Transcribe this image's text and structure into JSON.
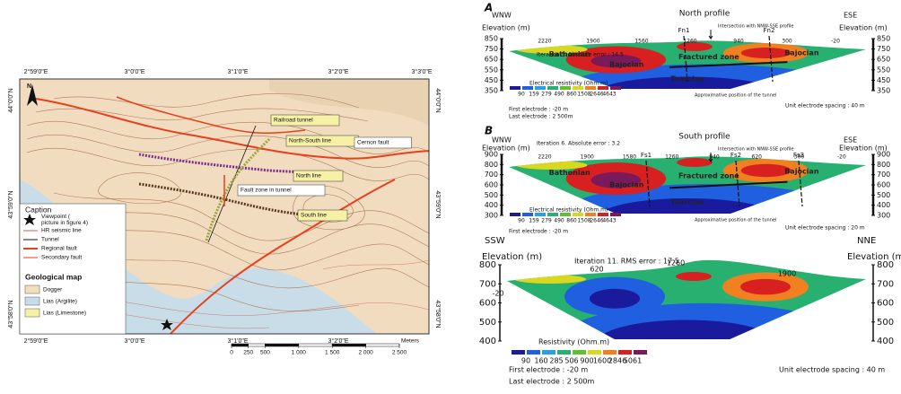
{
  "map": {
    "top_lon_labels": [
      "2°59'0\"E",
      "3°0'0\"E",
      "3°1'0\"E",
      "3°2'0\"E",
      "3°3'0\"E"
    ],
    "bottom_lon_labels": [
      "2°59'0\"E",
      "3°0'0\"E",
      "3°1'0\"E",
      "3°2'0\"E"
    ],
    "left_lat_labels": [
      "44°0'0\"N",
      "43°59'0\"N",
      "43°58'0\"N"
    ],
    "right_lat_labels": [
      "44°0'0\"N",
      "43°59'0\"N",
      "43°58'0\"N"
    ],
    "north": "N",
    "features": [
      "Railroad tunnel",
      "North-South line",
      "Cernon fault",
      "North line",
      "Fault zone in tunnel",
      "South line"
    ],
    "caption": {
      "title": "Caption",
      "items": [
        "Viewpoint (picture in figure 4)",
        "HR seismic line",
        "Tunnel",
        "Regional fault",
        "Secondary fault"
      ]
    },
    "geology": {
      "title": "Geological map",
      "items": [
        "Dogger",
        "Lias (Argilite)",
        "Lias (Limestone)"
      ]
    },
    "scale_bar": {
      "ticks": [
        0,
        250,
        500,
        {
          "value": 1000,
          "label": "1 000"
        },
        {
          "value": 1500,
          "label": "1 500"
        },
        {
          "value": 2000,
          "label": "2 000"
        },
        {
          "value": 2500,
          "label": "2 500"
        }
      ],
      "unit": "Meters"
    }
  },
  "profiles": [
    {
      "letter": "A",
      "title": "North profile",
      "left_dir": "WNW",
      "right_dir": "ESE",
      "y_label": "Elevation (m)",
      "yticks": [
        850,
        750,
        650,
        550,
        450,
        350
      ],
      "iteration": "Iteration 3. Absolute error : 14.5",
      "intersection": "Intersection with NNW-SSE profile",
      "faults": [
        "Fn1",
        "Fn2"
      ],
      "units": [
        "Bathonian",
        "Bajocian",
        "Fractured zone",
        "Bajocian",
        "Toarcian"
      ],
      "tunnel_note": "Approximative position of the tunnel",
      "distance_labels": [
        2220,
        1900,
        1560,
        1260,
        940,
        300,
        -20
      ],
      "resistivity_title": "Electrical resistivity (Ohm.m)",
      "resistivity_scale": [
        90,
        159,
        279,
        490,
        860,
        1508,
        2646,
        4643
      ],
      "first_electrode": "First electrode : -20 m",
      "last_electrode": "Last electrode : 2 500m",
      "spacing": "Unit electrode spacing : 40 m"
    },
    {
      "letter": "B",
      "title": "South profile",
      "left_dir": "WNW",
      "right_dir": "ESE",
      "y_label": "Elevation (m)",
      "yticks": [
        900,
        800,
        700,
        600,
        500,
        400,
        300
      ],
      "iteration": "Iteration 6. Absolute error : 3.2",
      "intersection": "Intersection with NNW-SSE profile",
      "faults": [
        "Fs1",
        "Fs2",
        "Fs3"
      ],
      "units": [
        "Bathonian",
        "Bajocian",
        "Fractured zone",
        "Bajocian",
        "Toarcian"
      ],
      "tunnel_note": "Approximative position of the tunnel",
      "distance_labels": [
        2220,
        1900,
        1580,
        1260,
        940,
        620,
        300,
        -20
      ],
      "resistivity_title": "Electrical resistivity (Ohm.m)",
      "resistivity_scale": [
        90,
        159,
        279,
        490,
        860,
        1508,
        2646,
        4643
      ],
      "first_electrode": "First electrode : -20 m",
      "spacing": "Unit electrode spacing : 20 m"
    },
    {
      "left_dir": "SSW",
      "right_dir": "NNE",
      "y_label": "Elevation (m)",
      "yticks": [
        800,
        700,
        600,
        500,
        400
      ],
      "iteration": "Iteration 11. RMS error : 17.5",
      "distance_labels": [
        620,
        1260,
        1900,
        -20
      ],
      "resistivity_title": "Resistivity (Ohm.m)",
      "resistivity_scale": [
        90,
        160,
        285,
        506,
        900,
        1600,
        2846,
        5061
      ],
      "first_electrode": "First electrode : -20 m",
      "last_electrode": "Last electrode : 2 500m",
      "spacing": "Unit electrode spacing : 40 m"
    }
  ]
}
